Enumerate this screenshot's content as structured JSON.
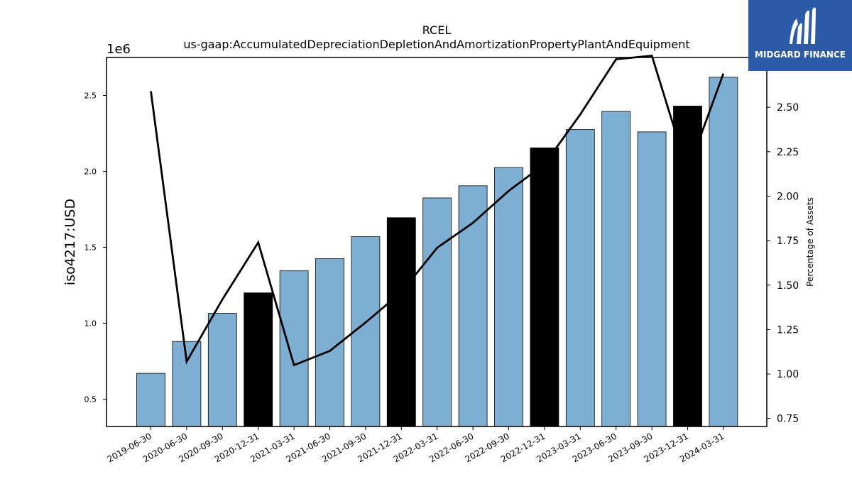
{
  "logo": {
    "text": "MIDGARD FINANCE",
    "background": "#2a5aa8"
  },
  "chart_data": {
    "type": "bar",
    "title": "RCEL",
    "subtitle": "us-gaap:AccumulatedDepreciationDepletionAndAmortizationPropertyPlantAndEquipment",
    "ylabel": "iso4217:USD",
    "y_offset_label": "1e6",
    "y2label": "Percentage of Assets",
    "ylim": [
      0.32,
      2.75
    ],
    "y2lim": [
      0.705,
      2.78
    ],
    "yticks": [
      "0.5",
      "1.0",
      "1.5",
      "2.0",
      "2.5"
    ],
    "y2ticks": [
      "0.75",
      "1.00",
      "1.25",
      "1.50",
      "1.75",
      "2.00",
      "2.25",
      "2.50",
      "2.75"
    ],
    "grid": false,
    "categories": [
      "2019-06-30",
      "2020-06-30",
      "2020-09-30",
      "2020-12-31",
      "2021-03-31",
      "2021-06-30",
      "2021-09-30",
      "2021-12-31",
      "2022-03-31",
      "2022-06-30",
      "2022-09-30",
      "2022-12-31",
      "2023-03-31",
      "2023-06-30",
      "2023-09-30",
      "2023-12-31",
      "2024-03-31"
    ],
    "series": [
      {
        "type": "bar",
        "values": [
          0.67,
          0.88,
          1.065,
          1.2,
          1.345,
          1.425,
          1.57,
          1.695,
          1.825,
          1.905,
          2.025,
          2.155,
          2.275,
          2.395,
          2.26,
          2.43,
          2.62
        ],
        "colors": [
          "#7eafd3",
          "#7eafd3",
          "#7eafd3",
          "#000000",
          "#7eafd3",
          "#7eafd3",
          "#7eafd3",
          "#000000",
          "#7eafd3",
          "#7eafd3",
          "#7eafd3",
          "#000000",
          "#7eafd3",
          "#7eafd3",
          "#7eafd3",
          "#000000",
          "#7eafd3"
        ]
      },
      {
        "type": "line",
        "axis": "right",
        "color": "#000000",
        "values": [
          2.59,
          1.07,
          1.42,
          1.74,
          1.05,
          1.13,
          1.29,
          1.46,
          1.71,
          1.85,
          2.03,
          2.18,
          2.46,
          2.77,
          2.79,
          2.14,
          2.69
        ]
      }
    ]
  }
}
